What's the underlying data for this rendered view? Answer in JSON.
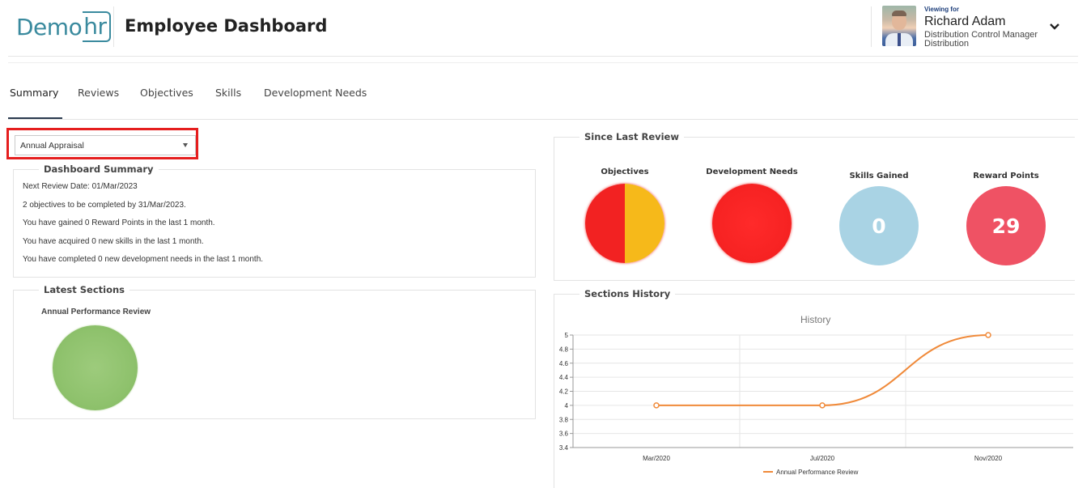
{
  "header": {
    "logo_demo": "Demo",
    "logo_hr": "hr",
    "title": "Employee Dashboard",
    "viewing_for": "Viewing for",
    "user_name": "Richard Adam",
    "user_role": "Distribution Control Manager",
    "user_dept": "Distribution"
  },
  "tabs": [
    {
      "label": "Summary",
      "active": true
    },
    {
      "label": "Reviews"
    },
    {
      "label": "Objectives"
    },
    {
      "label": "Skills"
    },
    {
      "label": "Development Needs"
    }
  ],
  "review_select": {
    "value": "Annual Appraisal"
  },
  "dashboard_summary": {
    "legend": "Dashboard Summary",
    "lines": [
      "Next Review Date: 01/Mar/2023",
      "2 objectives to be completed by 31/Mar/2023.",
      "You have gained 0 Reward Points in the last 1 month.",
      "You have acquired 0 new skills in the last 1 month.",
      "You have completed 0 new development needs in the last 1 month."
    ]
  },
  "latest_sections": {
    "legend": "Latest Sections",
    "section_name": "Annual Performance Review",
    "status_color": "#8fc26d"
  },
  "since_last_review": {
    "legend": "Since Last Review",
    "items": [
      {
        "label": "Objectives",
        "value": "",
        "colors": [
          "#f22222",
          "#f6b91a"
        ]
      },
      {
        "label": "Development Needs",
        "value": "",
        "colors": [
          "#f62222"
        ]
      },
      {
        "label": "Skills Gained",
        "value": "0",
        "colors": [
          "#a9d3e4"
        ]
      },
      {
        "label": "Reward Points",
        "value": "29",
        "colors": [
          "#ef5264"
        ]
      }
    ]
  },
  "sections_history": {
    "legend": "Sections History"
  },
  "chart_data": {
    "type": "line",
    "title": "History",
    "categories": [
      "Mar/2020",
      "Jul/2020",
      "Nov/2020"
    ],
    "series": [
      {
        "name": "Annual Performance Review",
        "values": [
          4,
          4,
          5
        ],
        "color": "#f08a3a"
      }
    ],
    "ylim": [
      3.4,
      5
    ],
    "yticks": [
      "5",
      "4.8",
      "4.6",
      "4.4",
      "4.2",
      "4",
      "3.8",
      "3.6",
      "3.4"
    ],
    "grid": true,
    "legend_position": "bottom"
  }
}
